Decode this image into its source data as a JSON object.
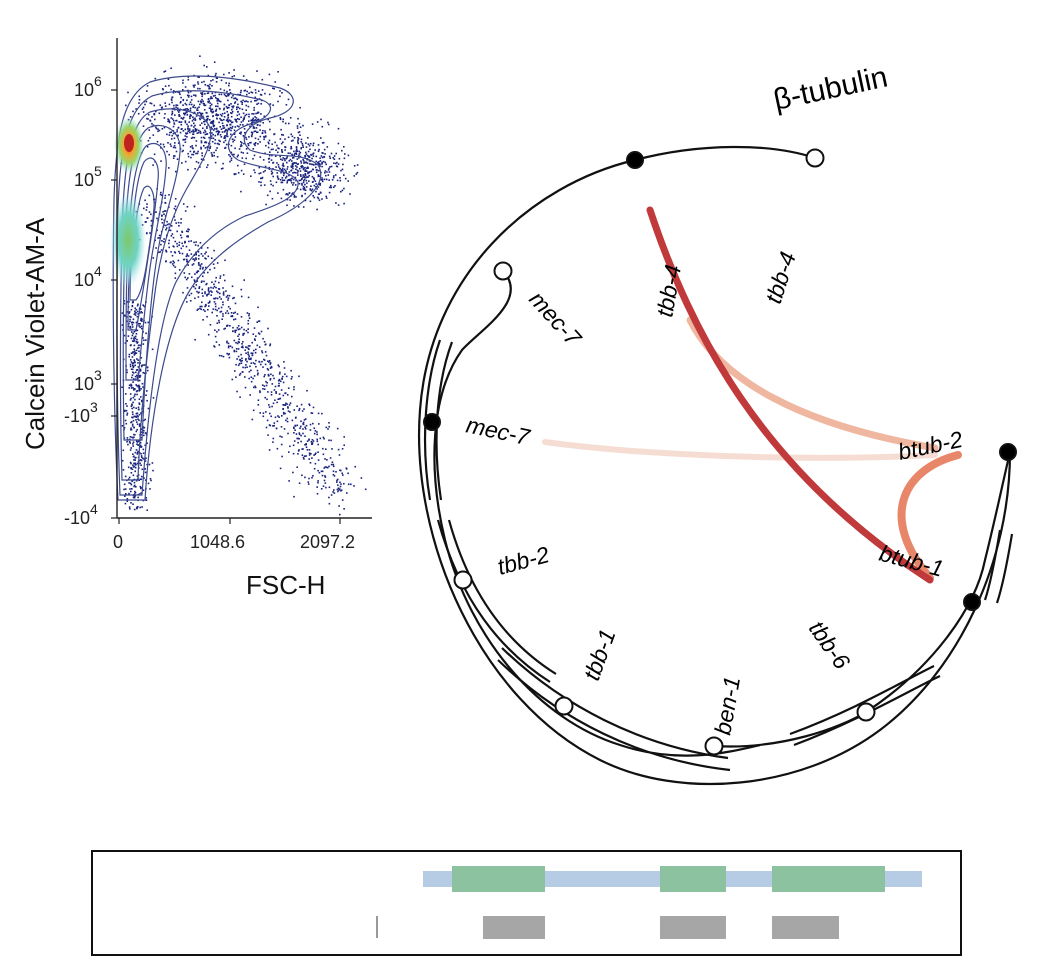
{
  "flow_plot": {
    "x_axis_label": "FSC-H",
    "y_axis_label": "Calcein Violet-AM-A",
    "x_ticks": [
      "0",
      "1048.6",
      "2097.2"
    ],
    "y_ticks": [
      {
        "base": "10",
        "exp": "6"
      },
      {
        "base": "10",
        "exp": "5"
      },
      {
        "base": "10",
        "exp": "4"
      },
      {
        "base": "10",
        "exp": "3"
      },
      {
        "base": "-10",
        "exp": "3"
      },
      {
        "base": "-10",
        "exp": "4"
      }
    ],
    "dot_color": "#1a237e"
  },
  "circle_diagram": {
    "title": "β-tubulin",
    "inner_labels": [
      "mec-7",
      "tbb-4",
      "tbb-2",
      "tbb-1",
      "ben-1",
      "tbb-6"
    ],
    "link_labels": [
      "tbb-4",
      "mec-7",
      "btub-2",
      "btub-1"
    ],
    "link_colors": {
      "strong": "#c0393b",
      "medium": "#e8866a",
      "light": "#f0b7a0",
      "faint": "#f6ddd3"
    }
  },
  "gene_model": {
    "colors": {
      "transcript": "#b6cce4",
      "exon": "#8cc2a0",
      "feature": "#a6a6a6",
      "marker": "#999999"
    }
  }
}
